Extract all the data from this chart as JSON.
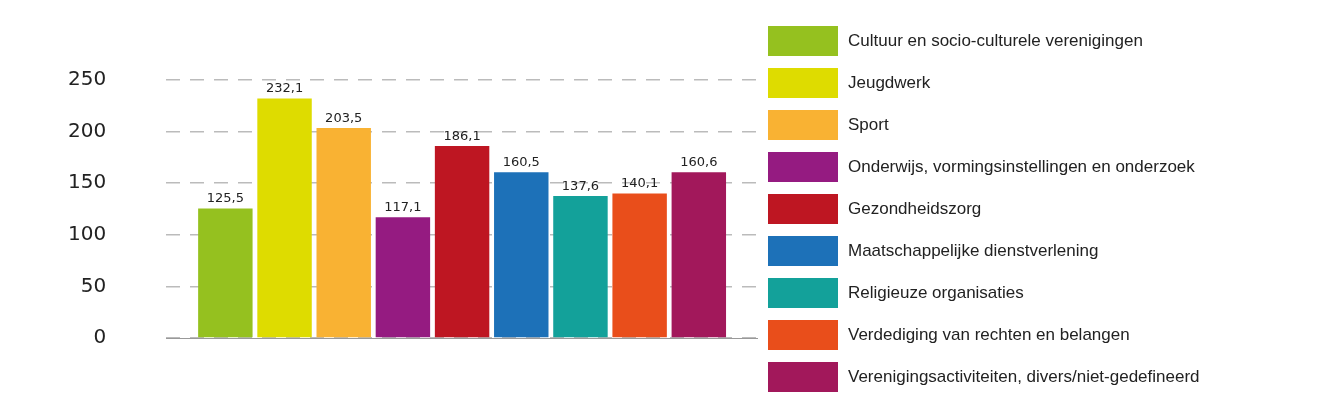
{
  "chart_data": {
    "type": "bar",
    "categories": [
      null
    ],
    "series": [
      {
        "name": "Cultuur en socio-culturele verenigingen",
        "color": "#95c11f",
        "values": [
          125.5
        ],
        "value_labels": [
          "125,5"
        ]
      },
      {
        "name": "Jeugdwerk",
        "color": "#dedc00",
        "values": [
          232.1
        ],
        "value_labels": [
          "232,1"
        ]
      },
      {
        "name": "Sport",
        "color": "#f9b233",
        "values": [
          203.5
        ],
        "value_labels": [
          "203,5"
        ]
      },
      {
        "name": "Onderwijs, vormingsinstellingen en onderzoek",
        "color": "#951b81",
        "values": [
          117.1
        ],
        "value_labels": [
          "117,1"
        ]
      },
      {
        "name": "Gezondheidszorg",
        "color": "#be1622",
        "values": [
          186.1
        ],
        "value_labels": [
          "186,1"
        ]
      },
      {
        "name": "Maatschappelijke dienstverlening",
        "color": "#1d71b8",
        "values": [
          160.5
        ],
        "value_labels": [
          "160,5"
        ]
      },
      {
        "name": "Religieuze organisaties",
        "color": "#13a19a",
        "values": [
          137.6
        ],
        "value_labels": [
          "137,6"
        ]
      },
      {
        "name": "Verdediging van rechten en belangen",
        "color": "#e94e1b",
        "values": [
          140.1
        ],
        "value_labels": [
          "140,1"
        ]
      },
      {
        "name": "Verenigingsactiviteiten, divers/niet-gedefineerd",
        "color": "#a2185b",
        "values": [
          160.6
        ],
        "value_labels": [
          "160,6"
        ]
      }
    ],
    "ylim": [
      0,
      250
    ],
    "yticks": [
      0,
      50,
      100,
      150,
      200,
      250
    ],
    "grid": "y",
    "legend": "right"
  }
}
